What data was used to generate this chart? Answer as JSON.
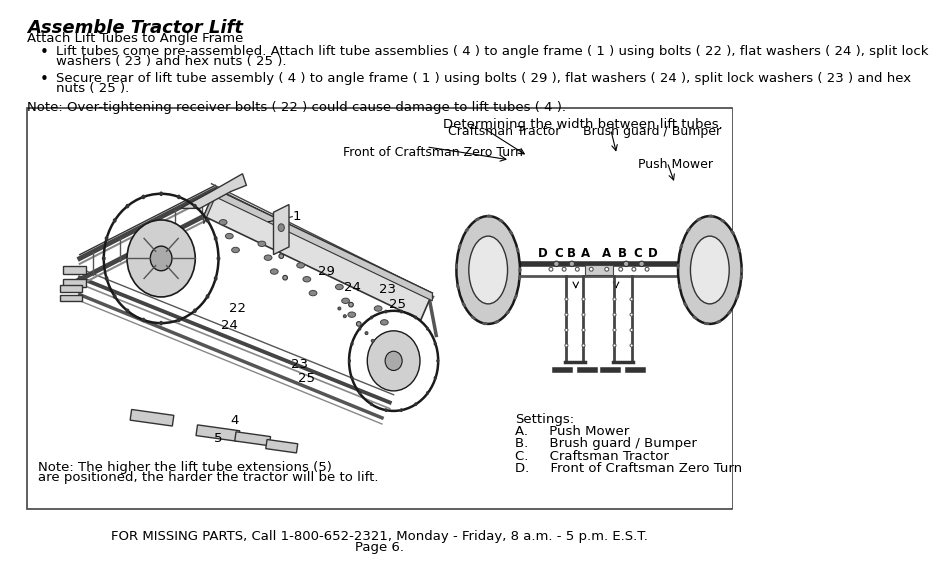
{
  "title": "Assemble Tractor Lift",
  "subtitle": "Attach Lift Tubes to Angle Frame",
  "bullet1_line1": "Lift tubes come pre-assembled. Attach lift tube assemblies ( 4 ) to angle frame ( 1 ) using bolts ( 22 ), flat washers ( 24 ), split lock",
  "bullet1_line2": "washers ( 23 ) and hex nuts ( 25 ).",
  "bullet2_line1": "Secure rear of lift tube assembly ( 4 ) to angle frame ( 1 ) using bolts ( 29 ), flat washers ( 24 ), split lock washers ( 23 ) and hex",
  "bullet2_line2": "nuts ( 25 ).",
  "note_top": "Note: Over-tightening receiver bolts ( 22 ) could cause damage to lift tubes ( 4 ).",
  "note_bottom_line1": "Note: The higher the lift tube extensions (5)",
  "note_bottom_line2": "are positioned, the harder the tractor will be to lift.",
  "footer1": "FOR MISSING PARTS, Call 1-800-652-2321, Monday - Friday, 8 a.m. - 5 p.m. E.S.T.",
  "footer2": "Page 6.",
  "diagram_label_top": "Determining the width between lift tubes.",
  "label_craftsman_tractor": "Craftsman Tractor",
  "label_brush_guard": "Brush guard / Bumper",
  "label_front_zero_turn": "Front of Craftsman Zero Turn",
  "label_push_mower": "Push Mower",
  "settings_title": "Settings:",
  "settings_A": "A.     Push Mower",
  "settings_B": "B.     Brush guard / Bumper",
  "settings_C": "C.     Craftsman Tractor",
  "settings_D": "D.     Front of Craftsman Zero Turn",
  "bg_color": "#ffffff",
  "text_color": "#000000",
  "num_labels": [
    [
      "1",
      370,
      470
    ],
    [
      "29",
      408,
      398
    ],
    [
      "24",
      442,
      378
    ],
    [
      "23",
      487,
      375
    ],
    [
      "25",
      500,
      355
    ],
    [
      "22",
      293,
      350
    ],
    [
      "24",
      283,
      328
    ],
    [
      "23",
      373,
      278
    ],
    [
      "25",
      383,
      260
    ],
    [
      "4",
      290,
      205
    ],
    [
      "5",
      268,
      182
    ]
  ]
}
